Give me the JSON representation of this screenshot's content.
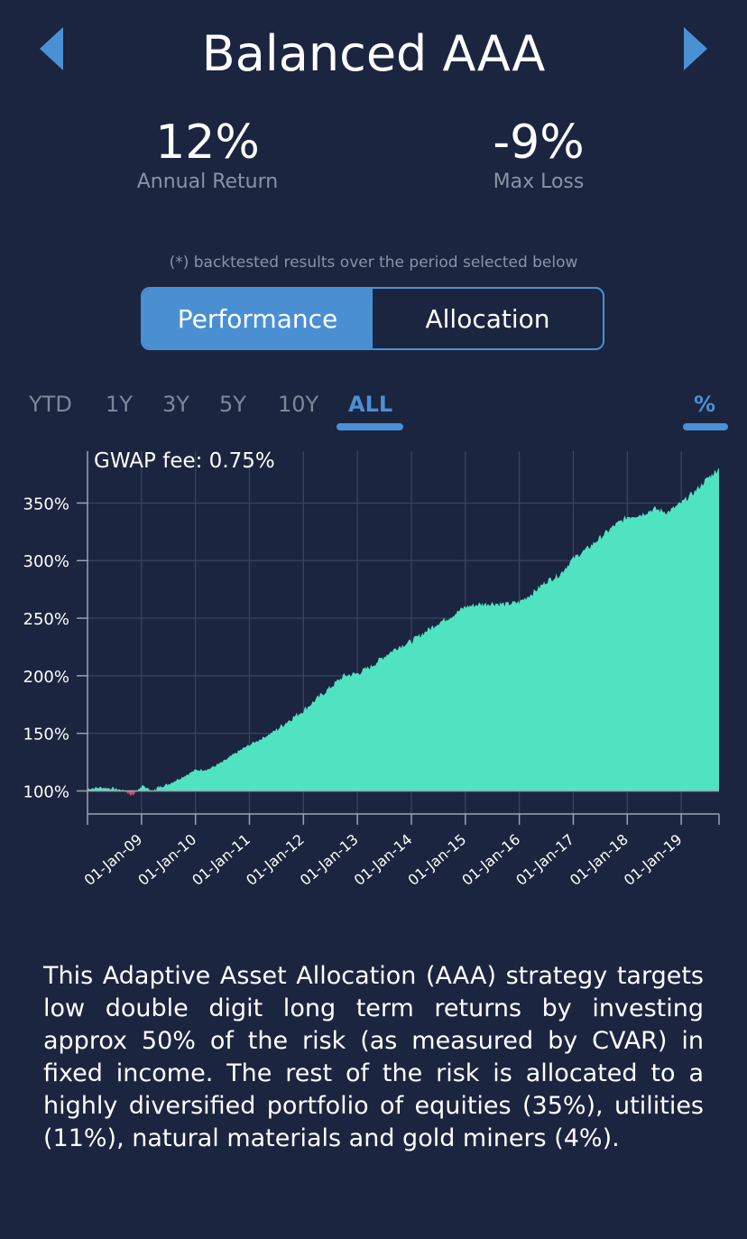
{
  "header": {
    "title": "Balanced AAA",
    "prev_icon": "triangle-left-icon",
    "next_icon": "triangle-right-icon",
    "accent_color": "#4a90d4"
  },
  "stats": {
    "annual_return": {
      "value": "12%",
      "label": "Annual Return"
    },
    "max_loss": {
      "value": "-9%",
      "label": "Max Loss"
    }
  },
  "note": "(*) backtested results over the period selected below",
  "segmented": {
    "performance": "Performance",
    "allocation": "Allocation",
    "selected": "Performance"
  },
  "ranges": {
    "items": [
      "YTD",
      "1Y",
      "3Y",
      "5Y",
      "10Y",
      "ALL"
    ],
    "selected": "ALL",
    "unit_toggle": "%"
  },
  "chart_data": {
    "type": "area",
    "annotation": "GWAP fee: 0.75%",
    "xlabel": "",
    "ylabel": "",
    "x_tick_labels": [
      "01-Jan-09",
      "01-Jan-10",
      "01-Jan-11",
      "01-Jan-12",
      "01-Jan-13",
      "01-Jan-14",
      "01-Jan-15",
      "01-Jan-16",
      "01-Jan-17",
      "01-Jan-18",
      "01-Jan-19"
    ],
    "y_tick_labels": [
      "100%",
      "150%",
      "200%",
      "250%",
      "300%",
      "350%"
    ],
    "y_ticks": [
      100,
      150,
      200,
      250,
      300,
      350
    ],
    "xlim": [
      2008.0,
      2019.7
    ],
    "ylim": [
      80,
      395
    ],
    "baseline": 100,
    "fill_color_above": "#50e3c2",
    "fill_color_below": "#e0486a",
    "grid": true,
    "series": [
      {
        "x": [
          2008.0,
          2008.25,
          2008.5,
          2008.7,
          2008.8,
          2008.9,
          2009.0,
          2009.1,
          2009.2,
          2009.3,
          2009.5,
          2009.75,
          2010.0,
          2010.25,
          2010.5,
          2010.75,
          2011.0,
          2011.25,
          2011.5,
          2011.75,
          2012.0,
          2012.25,
          2012.5,
          2012.75,
          2013.0,
          2013.25,
          2013.5,
          2013.75,
          2014.0,
          2014.25,
          2014.5,
          2014.75,
          2015.0,
          2015.25,
          2015.5,
          2015.75,
          2016.0,
          2016.25,
          2016.5,
          2016.75,
          2017.0,
          2017.25,
          2017.5,
          2017.75,
          2018.0,
          2018.25,
          2018.5,
          2018.75,
          2019.0,
          2019.25,
          2019.5,
          2019.7
        ],
        "y": [
          102,
          103,
          102,
          100,
          96,
          99,
          104,
          103,
          99,
          103,
          106,
          112,
          118,
          119,
          125,
          133,
          140,
          146,
          153,
          162,
          170,
          180,
          190,
          200,
          202,
          208,
          217,
          225,
          230,
          238,
          246,
          252,
          260,
          262,
          263,
          262,
          264,
          272,
          282,
          288,
          302,
          310,
          320,
          330,
          338,
          340,
          345,
          342,
          350,
          360,
          372,
          380
        ]
      }
    ]
  },
  "description": "This Adaptive Asset Allocation (AAA) strategy targets low double digit long term returns by investing approx 50% of the risk (as measured by CVAR) in fixed income. The rest of the risk is allocated to a highly diversified portfolio of equities (35%), utilities (11%), natural materials and gold miners (4%)."
}
